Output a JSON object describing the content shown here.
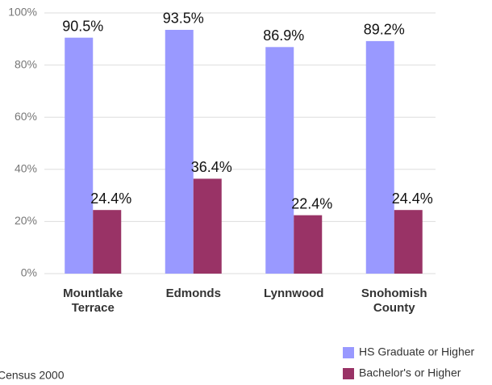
{
  "chart_data": {
    "type": "bar",
    "categories": [
      "Mountlake Terrace",
      "Edmonds",
      "Lynnwood",
      "Snohomish County"
    ],
    "series": [
      {
        "name": "HS Graduate or Higher",
        "color": "#9999ff",
        "values": [
          90.5,
          93.5,
          86.9,
          89.2
        ],
        "value_labels": [
          "90.5%",
          "93.5%",
          "86.9%",
          "89.2%"
        ]
      },
      {
        "name": "Bachelor's or Higher",
        "color": "#993366",
        "values": [
          24.4,
          36.4,
          22.4,
          24.4
        ],
        "value_labels": [
          "24.4%",
          "36.4%",
          "22.4%",
          "24.4%"
        ]
      }
    ],
    "ylim": [
      0,
      100
    ],
    "yticks": [
      {
        "value": 0,
        "label": "0%"
      },
      {
        "value": 20,
        "label": "20%"
      },
      {
        "value": 40,
        "label": "40%"
      },
      {
        "value": 60,
        "label": "60%"
      },
      {
        "value": 80,
        "label": "80%"
      },
      {
        "value": 100,
        "label": "100%"
      }
    ],
    "grid": true,
    "legend": "bottom-right",
    "source": "Census 2000"
  }
}
